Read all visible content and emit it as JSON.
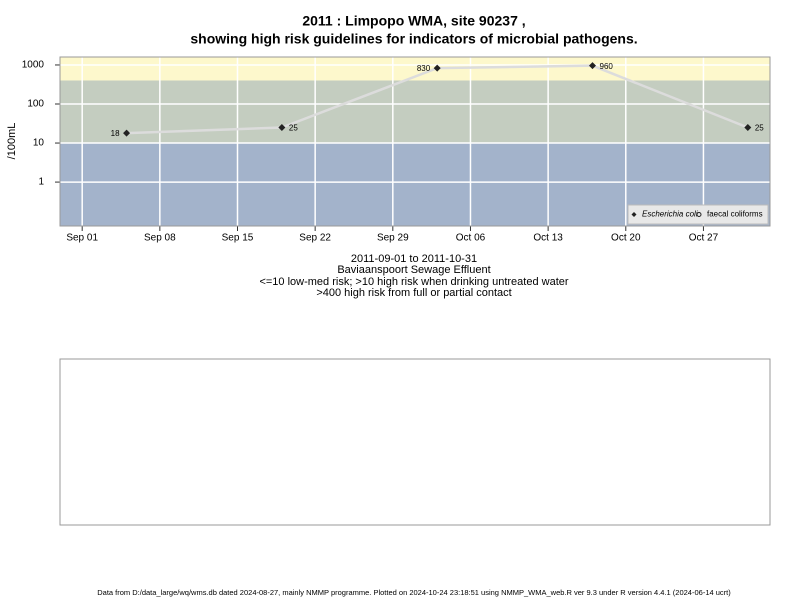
{
  "chart_data": {
    "type": "line",
    "title": [
      "2011 : Limpopo WMA, site 90237 ,",
      "showing high risk guidelines for indicators of microbial pathogens."
    ],
    "y_label": "/100mL",
    "y_scale": "log",
    "x": [
      "2011-09-05",
      "2011-09-19",
      "2011-10-03",
      "2011-10-17",
      "2011-10-31"
    ],
    "series": [
      {
        "name": "Escherichia coli",
        "color": "#222222",
        "marker": "diamond",
        "values": [
          18,
          25,
          830,
          960,
          25
        ]
      },
      {
        "name": "faecal coliforms",
        "color": "#222222",
        "marker": "circle",
        "values": [
          null,
          null,
          null,
          null,
          null
        ]
      }
    ],
    "line_color": "#dcdcdc",
    "xlim": [
      "2011-08-30",
      "2011-11-02"
    ],
    "xticks": [
      {
        "value": "2011-09-01",
        "label": "Sep 01"
      },
      {
        "value": "2011-09-08",
        "label": "Sep 08"
      },
      {
        "value": "2011-09-15",
        "label": "Sep 15"
      },
      {
        "value": "2011-09-22",
        "label": "Sep 22"
      },
      {
        "value": "2011-09-29",
        "label": "Sep 29"
      },
      {
        "value": "2011-10-06",
        "label": "Oct 06"
      },
      {
        "value": "2011-10-13",
        "label": "Oct 13"
      },
      {
        "value": "2011-10-20",
        "label": "Oct 20"
      },
      {
        "value": "2011-10-27",
        "label": "Oct 27"
      }
    ],
    "ylim": [
      0.075,
      1600
    ],
    "yticks": [
      1,
      10,
      100,
      1000
    ],
    "grid": true,
    "band_breaks": [
      10,
      400
    ],
    "band_colors": [
      "#a3b3cb",
      "#c4cdc0",
      "#fdf8cc"
    ],
    "legend_position": "bottom-right",
    "caption": [
      "2011-09-01 to 2011-10-31",
      "Baviaanspoort Sewage Effluent",
      "<=10 low-med risk; >10 high risk when drinking untreated water",
      ">400 high risk from full or partial contact"
    ],
    "footer": "Data from D:/data_large/wq/wms.db dated 2024-08-27, mainly NMMP programme. Plotted on 2024-10-24 23:18:51 using NMMP_WMA_web.R ver 9.3 under R version 4.4.1 (2024-06-14 ucrt)"
  }
}
